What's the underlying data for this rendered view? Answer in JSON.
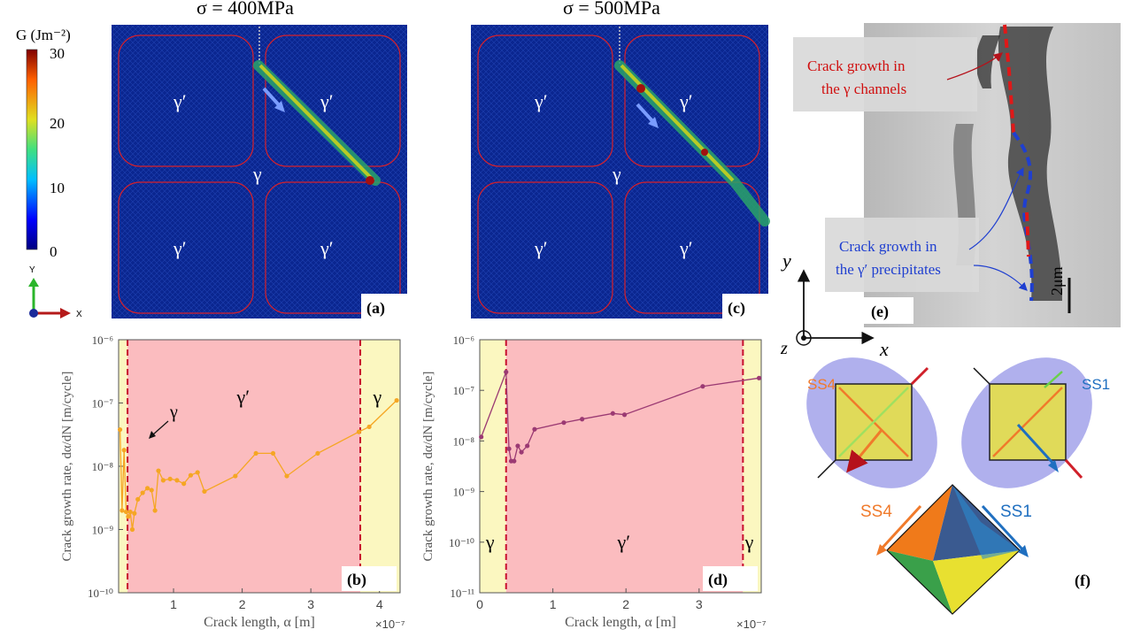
{
  "panels": {
    "a": {
      "title": "σ = 400MPa",
      "tag": "(a)",
      "phase_labels": [
        "γ′",
        "γ′",
        "γ′",
        "γ′"
      ],
      "matrix_label": "γ"
    },
    "c": {
      "title": "σ = 500MPa",
      "tag": "(c)",
      "phase_labels": [
        "γ′",
        "γ′",
        "γ′",
        "γ′"
      ],
      "matrix_label": "γ"
    },
    "e": {
      "tag": "(e)",
      "note_red": [
        "Crack growth in",
        "the γ channels"
      ],
      "note_blue": [
        "Crack growth in",
        "the γ′ precipitates"
      ],
      "scale_bar": "2μm"
    },
    "f": {
      "tag": "(f)",
      "labels": [
        "SS4",
        "SS1",
        "SS4",
        "SS1"
      ]
    }
  },
  "colorbar": {
    "title": "G (Jm⁻²)",
    "ticks": [
      "30",
      "20",
      "10",
      "0"
    ]
  },
  "triad_small": {
    "y": "Y",
    "x": "X"
  },
  "triad_large": {
    "y": "y",
    "x": "x",
    "z": "z"
  },
  "colors": {
    "gamma_shade": "#fbf7c0",
    "gamma_prime_shade": "#fbbcbf",
    "series_b": "#f5a623",
    "series_d": "#9b3a73",
    "boundary": "#c8102e",
    "mesh_blue": "#0b2a9a"
  },
  "chart_data": [
    {
      "type": "line",
      "tag": "(b)",
      "title": "",
      "xlabel": "Crack length, α [m]",
      "ylabel": "Crack growth rate, dα/dN [m/cycle]",
      "x_multiplier": "×10⁻⁷",
      "x_ticks": [
        "1",
        "2",
        "3",
        "4"
      ],
      "y_ticks": [
        "10⁻⁶",
        "10⁻⁷",
        "10⁻⁸",
        "10⁻⁹",
        "10⁻¹⁰"
      ],
      "xlim": [
        0.2,
        4.3
      ],
      "ylim_log10": [
        -10,
        -6
      ],
      "regions": [
        {
          "from": 0.2,
          "to": 0.33,
          "label": "γ",
          "phase": "gamma"
        },
        {
          "from": 0.33,
          "to": 3.72,
          "label": "γ′",
          "phase": "gamma_prime"
        },
        {
          "from": 3.72,
          "to": 4.3,
          "label": "γ",
          "phase": "gamma"
        }
      ],
      "boundaries": [
        0.33,
        3.72
      ],
      "annotation": "γ",
      "series": [
        {
          "name": "σ = 400MPa",
          "x": [
            0.22,
            0.25,
            0.28,
            0.31,
            0.34,
            0.37,
            0.4,
            0.43,
            0.48,
            0.55,
            0.62,
            0.68,
            0.73,
            0.78,
            0.85,
            0.95,
            1.05,
            1.15,
            1.25,
            1.35,
            1.45,
            1.9,
            2.2,
            2.45,
            2.65,
            3.1,
            3.7,
            3.85,
            4.25
          ],
          "y": [
            3.8e-08,
            2e-09,
            1.8e-08,
            1.9e-09,
            1.6e-09,
            1.9e-09,
            1e-09,
            1.8e-09,
            3e-09,
            3.8e-09,
            4.5e-09,
            4.2e-09,
            2e-09,
            8.5e-09,
            6e-09,
            6.3e-09,
            6e-09,
            5.3e-09,
            7.2e-09,
            8e-09,
            4e-09,
            7e-09,
            1.6e-08,
            1.6e-08,
            7e-09,
            1.6e-08,
            3.5e-08,
            4.2e-08,
            1.1e-07
          ]
        }
      ]
    },
    {
      "type": "line",
      "tag": "(d)",
      "title": "",
      "xlabel": "Crack length, α [m]",
      "ylabel": "Crack growth rate, dα/dN [m/cycle]",
      "x_multiplier": "×10⁻⁷",
      "x_ticks": [
        "0",
        "1",
        "2",
        "3"
      ],
      "y_ticks": [
        "10⁻⁶",
        "10⁻⁷",
        "10⁻⁸",
        "10⁻⁹",
        "10⁻¹⁰",
        "10⁻¹¹"
      ],
      "xlim": [
        0,
        3.85
      ],
      "ylim_log10": [
        -11,
        -6
      ],
      "regions": [
        {
          "from": 0,
          "to": 0.36,
          "label": "γ",
          "phase": "gamma"
        },
        {
          "from": 0.36,
          "to": 3.6,
          "label": "γ′",
          "phase": "gamma_prime"
        },
        {
          "from": 3.6,
          "to": 3.85,
          "label": "γ",
          "phase": "gamma"
        }
      ],
      "boundaries": [
        0.36,
        3.6
      ],
      "series": [
        {
          "name": "σ = 500MPa",
          "x": [
            0.02,
            0.36,
            0.4,
            0.43,
            0.47,
            0.52,
            0.57,
            0.65,
            0.75,
            1.15,
            1.4,
            1.82,
            1.98,
            3.05,
            3.82
          ],
          "y": [
            1.2e-08,
            2.3e-07,
            7e-09,
            4e-09,
            4e-09,
            8e-09,
            6e-09,
            8e-09,
            1.7e-08,
            2.3e-08,
            2.7e-08,
            3.5e-08,
            3.3e-08,
            1.2e-07,
            1.75e-07
          ]
        }
      ]
    }
  ]
}
